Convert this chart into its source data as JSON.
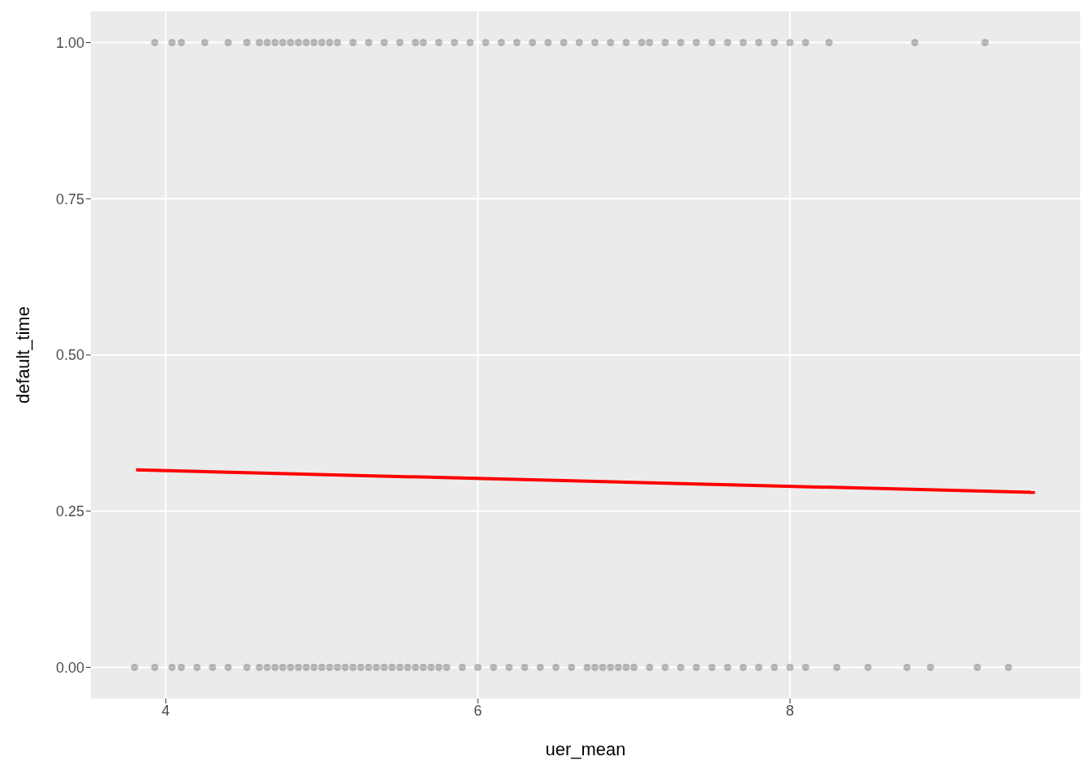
{
  "chart_data": {
    "type": "scatter",
    "xlabel": "uer_mean",
    "ylabel": "default_time",
    "xlim": [
      3.52,
      9.86
    ],
    "xticks": [
      4,
      6,
      8
    ],
    "ylim": [
      -0.05,
      1.05
    ],
    "yticks": [
      {
        "value": 0,
        "label": "0.00"
      },
      {
        "value": 0.25,
        "label": "0.25"
      },
      {
        "value": 0.5,
        "label": "0.50"
      },
      {
        "value": 0.75,
        "label": "0.75"
      },
      {
        "value": 1,
        "label": "1.00"
      }
    ],
    "grid": true,
    "series": [
      {
        "color": "#000000",
        "marker": "circle",
        "x": [
          3.93,
          4.04,
          4.1,
          4.25,
          4.4,
          4.52,
          4.6,
          4.65,
          4.7,
          4.75,
          4.8,
          4.85,
          4.9,
          4.95,
          5.0,
          5.05,
          5.1,
          5.2,
          5.3,
          5.4,
          5.5,
          5.6,
          5.65,
          5.75,
          5.85,
          5.95,
          6.05,
          6.15,
          6.25,
          6.35,
          6.45,
          6.55,
          6.65,
          6.75,
          6.85,
          6.95,
          7.05,
          7.1,
          7.2,
          7.3,
          7.4,
          7.5,
          7.6,
          7.7,
          7.8,
          7.9,
          8.0,
          8.1,
          8.25,
          8.8,
          9.25
        ],
        "values": [
          1,
          1,
          1,
          1,
          1,
          1,
          1,
          1,
          1,
          1,
          1,
          1,
          1,
          1,
          1,
          1,
          1,
          1,
          1,
          1,
          1,
          1,
          1,
          1,
          1,
          1,
          1,
          1,
          1,
          1,
          1,
          1,
          1,
          1,
          1,
          1,
          1,
          1,
          1,
          1,
          1,
          1,
          1,
          1,
          1,
          1,
          1,
          1,
          1,
          1,
          1
        ]
      },
      {
        "color": "#000000",
        "marker": "circle",
        "x": [
          3.8,
          3.93,
          4.04,
          4.1,
          4.2,
          4.3,
          4.4,
          4.52,
          4.6,
          4.65,
          4.7,
          4.75,
          4.8,
          4.85,
          4.9,
          4.95,
          5.0,
          5.05,
          5.1,
          5.15,
          5.2,
          5.25,
          5.3,
          5.35,
          5.4,
          5.45,
          5.5,
          5.55,
          5.6,
          5.65,
          5.7,
          5.75,
          5.8,
          5.9,
          6.0,
          6.1,
          6.2,
          6.3,
          6.4,
          6.5,
          6.6,
          6.7,
          6.75,
          6.8,
          6.85,
          6.9,
          6.95,
          7.0,
          7.1,
          7.2,
          7.3,
          7.4,
          7.5,
          7.6,
          7.7,
          7.8,
          7.9,
          8.0,
          8.1,
          8.3,
          8.5,
          8.75,
          8.9,
          9.2,
          9.4
        ],
        "values": [
          0,
          0,
          0,
          0,
          0,
          0,
          0,
          0,
          0,
          0,
          0,
          0,
          0,
          0,
          0,
          0,
          0,
          0,
          0,
          0,
          0,
          0,
          0,
          0,
          0,
          0,
          0,
          0,
          0,
          0,
          0,
          0,
          0,
          0,
          0,
          0,
          0,
          0,
          0,
          0,
          0,
          0,
          0,
          0,
          0,
          0,
          0,
          0,
          0,
          0,
          0,
          0,
          0,
          0,
          0,
          0,
          0,
          0,
          0,
          0,
          0,
          0,
          0,
          0,
          0
        ]
      },
      {
        "type": "line",
        "color": "#ff0000",
        "x": [
          3.81,
          9.57
        ],
        "values": [
          0.316,
          0.28
        ]
      }
    ]
  }
}
